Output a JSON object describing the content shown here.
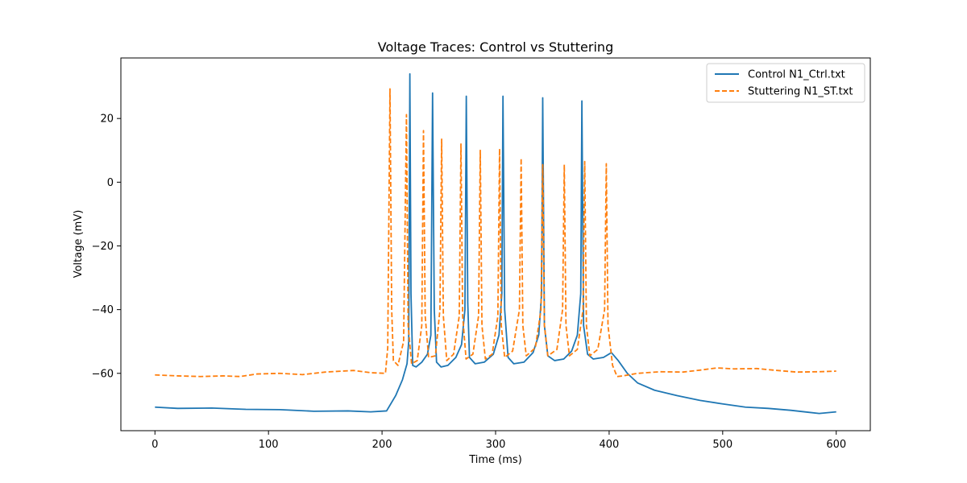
{
  "chart_data": {
    "type": "line",
    "title": "Voltage Traces: Control vs Stuttering",
    "xlabel": "Time (ms)",
    "ylabel": "Voltage (mV)",
    "xlim": [
      -30,
      630
    ],
    "ylim": [
      -78,
      39
    ],
    "xticks": [
      0,
      100,
      200,
      300,
      400,
      500,
      600
    ],
    "yticks": [
      -60,
      -40,
      -20,
      0,
      20
    ],
    "xtick_labels": [
      "0",
      "100",
      "200",
      "300",
      "400",
      "500",
      "600"
    ],
    "ytick_labels": [
      "−60",
      "−40",
      "−20",
      "0",
      "20"
    ],
    "grid": false,
    "legend_position": "top-right",
    "series": [
      {
        "name": "Control N1_Ctrl.txt",
        "color": "#1f77b4",
        "style": "solid",
        "points": [
          [
            0,
            -70.6
          ],
          [
            20,
            -71.0
          ],
          [
            50,
            -70.9
          ],
          [
            80,
            -71.3
          ],
          [
            110,
            -71.4
          ],
          [
            140,
            -71.9
          ],
          [
            170,
            -71.8
          ],
          [
            190,
            -72.1
          ],
          [
            204,
            -71.8
          ],
          [
            212,
            -67.0
          ],
          [
            218,
            -62.0
          ],
          [
            222,
            -57.0
          ],
          [
            223.5,
            -50.0
          ],
          [
            224.5,
            34.0
          ],
          [
            225.5,
            -35.0
          ],
          [
            227,
            -57.5
          ],
          [
            230,
            -58.0
          ],
          [
            235,
            -56.5
          ],
          [
            240,
            -54.0
          ],
          [
            243,
            -48.0
          ],
          [
            244.5,
            28.0
          ],
          [
            246,
            -40.0
          ],
          [
            248,
            -56.5
          ],
          [
            252,
            -58.0
          ],
          [
            258,
            -57.5
          ],
          [
            265,
            -55.0
          ],
          [
            270,
            -51.0
          ],
          [
            273,
            -40.0
          ],
          [
            274.2,
            27.0
          ],
          [
            275.5,
            -38.0
          ],
          [
            277,
            -55.0
          ],
          [
            282,
            -57.0
          ],
          [
            290,
            -56.5
          ],
          [
            298,
            -54.0
          ],
          [
            303,
            -48.0
          ],
          [
            305.5,
            -35.0
          ],
          [
            306.5,
            27.0
          ],
          [
            308,
            -40.0
          ],
          [
            311,
            -55.0
          ],
          [
            316,
            -57.0
          ],
          [
            325,
            -56.5
          ],
          [
            333,
            -53.5
          ],
          [
            338,
            -48.0
          ],
          [
            340.5,
            -35.0
          ],
          [
            341.5,
            26.5
          ],
          [
            343,
            -45.0
          ],
          [
            346,
            -54.5
          ],
          [
            352,
            -56.0
          ],
          [
            360,
            -55.5
          ],
          [
            367,
            -53.0
          ],
          [
            372,
            -48.0
          ],
          [
            375,
            -35.0
          ],
          [
            376,
            25.5
          ],
          [
            377.5,
            -45.0
          ],
          [
            381,
            -54.0
          ],
          [
            386,
            -55.5
          ],
          [
            395,
            -55.0
          ],
          [
            402,
            -53.5
          ],
          [
            408,
            -56.0
          ],
          [
            416,
            -60.0
          ],
          [
            425,
            -63.0
          ],
          [
            440,
            -65.3
          ],
          [
            460,
            -67.0
          ],
          [
            480,
            -68.5
          ],
          [
            500,
            -69.6
          ],
          [
            520,
            -70.6
          ],
          [
            540,
            -71.0
          ],
          [
            560,
            -71.6
          ],
          [
            575,
            -72.2
          ],
          [
            585,
            -72.6
          ],
          [
            600,
            -72.1
          ]
        ]
      },
      {
        "name": "Stuttering N1_ST.txt",
        "color": "#ff7f0e",
        "style": "dashed",
        "points": [
          [
            0,
            -60.5
          ],
          [
            20,
            -60.8
          ],
          [
            40,
            -61.0
          ],
          [
            60,
            -60.8
          ],
          [
            75,
            -61.0
          ],
          [
            90,
            -60.2
          ],
          [
            110,
            -60.0
          ],
          [
            130,
            -60.4
          ],
          [
            150,
            -59.6
          ],
          [
            175,
            -59.1
          ],
          [
            190,
            -59.8
          ],
          [
            203,
            -60.0
          ],
          [
            205,
            -52.0
          ],
          [
            207,
            29.3
          ],
          [
            208.5,
            -40.0
          ],
          [
            210,
            -56.0
          ],
          [
            214,
            -57.5
          ],
          [
            219,
            -50.0
          ],
          [
            221.5,
            21.2
          ],
          [
            223,
            -45.0
          ],
          [
            226,
            -57.0
          ],
          [
            231,
            -56.0
          ],
          [
            235,
            -45.0
          ],
          [
            236.5,
            16.2
          ],
          [
            238,
            -42.0
          ],
          [
            241,
            -55.0
          ],
          [
            247,
            -54.5
          ],
          [
            251,
            -40.0
          ],
          [
            252.5,
            13.5
          ],
          [
            254,
            -42.0
          ],
          [
            257,
            -56.0
          ],
          [
            263,
            -54.0
          ],
          [
            268,
            -42.0
          ],
          [
            269.5,
            12.0
          ],
          [
            271,
            -42.0
          ],
          [
            274,
            -55.5
          ],
          [
            280,
            -54.0
          ],
          [
            285,
            -42.0
          ],
          [
            286.5,
            10.0
          ],
          [
            288,
            -45.0
          ],
          [
            291,
            -55.5
          ],
          [
            297,
            -54.0
          ],
          [
            302,
            -42.0
          ],
          [
            303.5,
            10.5
          ],
          [
            305,
            -45.0
          ],
          [
            308,
            -55.0
          ],
          [
            315,
            -53.0
          ],
          [
            321,
            -40.0
          ],
          [
            322.5,
            7.5
          ],
          [
            324,
            -45.0
          ],
          [
            327,
            -54.5
          ],
          [
            335,
            -52.0
          ],
          [
            340,
            -40.0
          ],
          [
            341.5,
            5.5
          ],
          [
            343,
            -45.0
          ],
          [
            346,
            -54.5
          ],
          [
            354,
            -52.5
          ],
          [
            359,
            -40.0
          ],
          [
            360.5,
            5.5
          ],
          [
            362,
            -45.0
          ],
          [
            365,
            -54.5
          ],
          [
            372,
            -52.5
          ],
          [
            377,
            -40.0
          ],
          [
            378.5,
            6.5
          ],
          [
            380,
            -45.0
          ],
          [
            383,
            -54.5
          ],
          [
            390,
            -52.5
          ],
          [
            396,
            -40.0
          ],
          [
            397.5,
            5.8
          ],
          [
            399,
            -45.0
          ],
          [
            403,
            -57.5
          ],
          [
            407,
            -61.0
          ],
          [
            412,
            -60.8
          ],
          [
            425,
            -60.0
          ],
          [
            445,
            -59.5
          ],
          [
            465,
            -59.6
          ],
          [
            480,
            -59.0
          ],
          [
            495,
            -58.3
          ],
          [
            510,
            -58.6
          ],
          [
            530,
            -58.5
          ],
          [
            545,
            -59.0
          ],
          [
            565,
            -59.6
          ],
          [
            585,
            -59.5
          ],
          [
            600,
            -59.3
          ]
        ]
      }
    ]
  }
}
